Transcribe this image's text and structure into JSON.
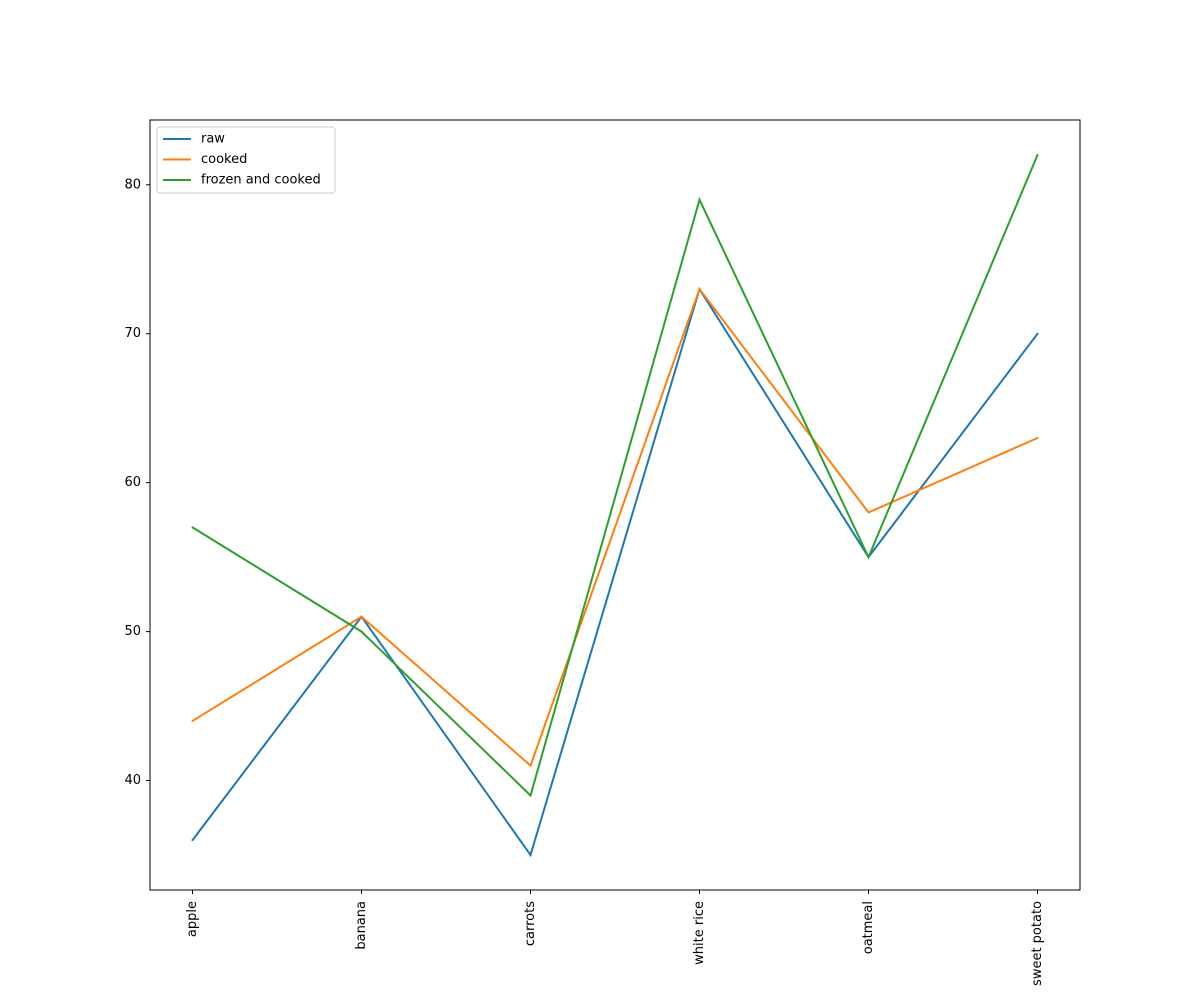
{
  "chart_data": {
    "type": "line",
    "categories": [
      "apple",
      "banana",
      "carrots",
      "white rice",
      "oatmeal",
      "sweet potato"
    ],
    "series": [
      {
        "name": "raw",
        "color": "#1f77b4",
        "values": [
          36,
          51,
          35,
          73,
          55,
          70
        ]
      },
      {
        "name": "cooked",
        "color": "#ff7f0e",
        "values": [
          44,
          51,
          41,
          73,
          58,
          63
        ]
      },
      {
        "name": "frozen and cooked",
        "color": "#2ca02c",
        "values": [
          57,
          50,
          39,
          79,
          55,
          82
        ]
      }
    ],
    "yticks": [
      40,
      50,
      60,
      70,
      80
    ],
    "ylim": [
      32.65,
      84.35
    ],
    "legend_position": "upper-left",
    "grid": false,
    "title": "",
    "xlabel": "",
    "ylabel": "",
    "xtick_rotation": "vertical"
  }
}
